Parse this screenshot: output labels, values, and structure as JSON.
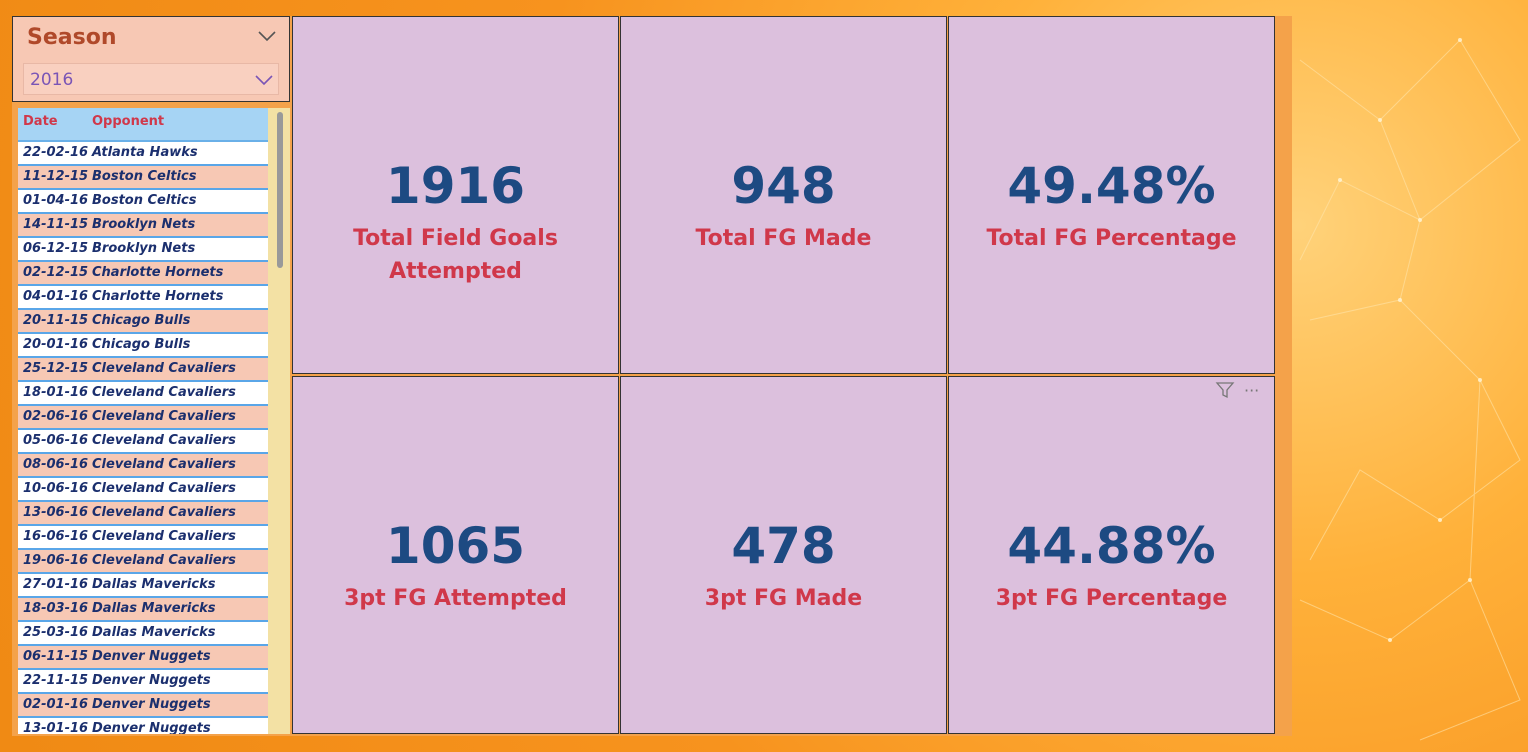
{
  "slicer": {
    "title": "Season",
    "selected": "2016"
  },
  "table": {
    "headers": {
      "date": "Date",
      "opponent": "Opponent"
    },
    "rows": [
      {
        "date": "22-02-16",
        "opponent": "Atlanta Hawks"
      },
      {
        "date": "11-12-15",
        "opponent": "Boston Celtics"
      },
      {
        "date": "01-04-16",
        "opponent": "Boston Celtics"
      },
      {
        "date": "14-11-15",
        "opponent": "Brooklyn Nets"
      },
      {
        "date": "06-12-15",
        "opponent": "Brooklyn Nets"
      },
      {
        "date": "02-12-15",
        "opponent": "Charlotte Hornets"
      },
      {
        "date": "04-01-16",
        "opponent": "Charlotte Hornets"
      },
      {
        "date": "20-11-15",
        "opponent": "Chicago Bulls"
      },
      {
        "date": "20-01-16",
        "opponent": "Chicago Bulls"
      },
      {
        "date": "25-12-15",
        "opponent": "Cleveland Cavaliers"
      },
      {
        "date": "18-01-16",
        "opponent": "Cleveland Cavaliers"
      },
      {
        "date": "02-06-16",
        "opponent": "Cleveland Cavaliers"
      },
      {
        "date": "05-06-16",
        "opponent": "Cleveland Cavaliers"
      },
      {
        "date": "08-06-16",
        "opponent": "Cleveland Cavaliers"
      },
      {
        "date": "10-06-16",
        "opponent": "Cleveland Cavaliers"
      },
      {
        "date": "13-06-16",
        "opponent": "Cleveland Cavaliers"
      },
      {
        "date": "16-06-16",
        "opponent": "Cleveland Cavaliers"
      },
      {
        "date": "19-06-16",
        "opponent": "Cleveland Cavaliers"
      },
      {
        "date": "27-01-16",
        "opponent": "Dallas Mavericks"
      },
      {
        "date": "18-03-16",
        "opponent": "Dallas Mavericks"
      },
      {
        "date": "25-03-16",
        "opponent": "Dallas Mavericks"
      },
      {
        "date": "06-11-15",
        "opponent": "Denver Nuggets"
      },
      {
        "date": "22-11-15",
        "opponent": "Denver Nuggets"
      },
      {
        "date": "02-01-16",
        "opponent": "Denver Nuggets"
      },
      {
        "date": "13-01-16",
        "opponent": "Denver Nuggets"
      }
    ]
  },
  "cards": [
    {
      "value": "1916",
      "label": "Total Field Goals Attempted"
    },
    {
      "value": "948",
      "label": "Total FG Made"
    },
    {
      "value": "49.48%",
      "label": "Total FG Percentage"
    },
    {
      "value": "1065",
      "label": "3pt FG Attempted"
    },
    {
      "value": "478",
      "label": "3pt FG Made"
    },
    {
      "value": "44.88%",
      "label": "3pt FG Percentage"
    }
  ],
  "card_tools": {
    "filter_icon": "filter-icon",
    "more_icon": "more-options-icon",
    "more_glyph": "···"
  },
  "colors": {
    "value": "#1d4a82",
    "label": "#d0384a",
    "card_bg": "#dcc0dd",
    "accent": "#f7931e"
  }
}
